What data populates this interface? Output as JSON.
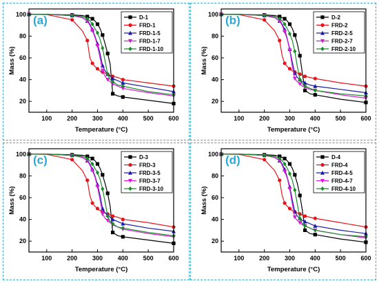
{
  "colors": {
    "frame": "#3aa6c9",
    "panel_label": "#29a8d8",
    "series": [
      "#000000",
      "#e5141b",
      "#1a1aa6",
      "#d81bd8",
      "#1b8a2a"
    ]
  },
  "chart_data": [
    {
      "type": "line",
      "panel_label": "(a)",
      "xlabel": "Temperature (°C)",
      "ylabel": "Mass (%)",
      "xlim": [
        30,
        600
      ],
      "ylim": [
        10,
        105
      ],
      "xticks": [
        "100",
        "200",
        "300",
        "400",
        "500",
        "600"
      ],
      "yticks": [
        "20",
        "40",
        "60",
        "80",
        "100"
      ],
      "legend_position": "top-right",
      "grid": false,
      "x": [
        30,
        100,
        200,
        240,
        260,
        270,
        280,
        290,
        300,
        310,
        320,
        330,
        340,
        350,
        360,
        380,
        400,
        500,
        600
      ],
      "series": [
        {
          "name": "D-1",
          "values": [
            100,
            100,
            99.5,
            99,
            98,
            97,
            96,
            94,
            91,
            87,
            81,
            73,
            64,
            54,
            27,
            25,
            24,
            21,
            18
          ]
        },
        {
          "name": "FRD-1",
          "values": [
            100,
            99.8,
            95,
            85,
            76,
            60,
            55,
            52,
            50,
            48,
            47,
            46,
            45,
            44,
            43,
            42,
            40,
            37,
            34
          ]
        },
        {
          "name": "FRD-1-5",
          "values": [
            100,
            100,
            99,
            97,
            94,
            91,
            86,
            80,
            73,
            64,
            53,
            48,
            45,
            43,
            41,
            39,
            37,
            33,
            29
          ]
        },
        {
          "name": "FRD-1-7",
          "values": [
            100,
            100,
            99,
            97,
            94,
            90,
            85,
            79,
            71,
            60,
            48,
            43,
            40,
            38,
            36,
            34,
            32,
            28,
            25
          ]
        },
        {
          "name": "FRD-1-10",
          "values": [
            100,
            100,
            99,
            98,
            96,
            94,
            91,
            87,
            83,
            77,
            69,
            57,
            45,
            40,
            38,
            35,
            34,
            29,
            26
          ]
        }
      ]
    },
    {
      "type": "line",
      "panel_label": "(b)",
      "xlabel": "Temperature (°C)",
      "ylabel": "Mass (%)",
      "xlim": [
        30,
        600
      ],
      "ylim": [
        10,
        105
      ],
      "xticks": [
        "100",
        "200",
        "300",
        "400",
        "500",
        "600"
      ],
      "yticks": [
        "20",
        "40",
        "60",
        "80",
        "100"
      ],
      "legend_position": "top-right",
      "grid": false,
      "x": [
        30,
        100,
        200,
        240,
        260,
        270,
        280,
        290,
        300,
        310,
        320,
        330,
        340,
        350,
        360,
        380,
        400,
        500,
        600
      ],
      "series": [
        {
          "name": "D-2",
          "values": [
            100,
            100,
            99.5,
            99,
            98,
            97,
            96,
            94,
            91,
            87,
            81,
            73,
            62,
            45,
            30,
            27,
            26,
            22,
            19
          ]
        },
        {
          "name": "FRD-2",
          "values": [
            100,
            99.8,
            95,
            85,
            76,
            62,
            55,
            52,
            50,
            48,
            47,
            46,
            45,
            44,
            43,
            42,
            41,
            37,
            34
          ]
        },
        {
          "name": "FRD-2-5",
          "values": [
            100,
            100,
            99,
            97,
            94,
            91,
            86,
            78,
            68,
            56,
            46,
            42,
            40,
            38,
            37,
            35,
            34,
            31,
            28
          ]
        },
        {
          "name": "FRD-2-7",
          "values": [
            100,
            100,
            99,
            97,
            94,
            90,
            84,
            77,
            67,
            52,
            41,
            38,
            36,
            34,
            33,
            31,
            30,
            26,
            23
          ]
        },
        {
          "name": "FRD-2-10",
          "values": [
            100,
            100,
            99,
            98,
            96,
            94,
            91,
            87,
            82,
            76,
            66,
            52,
            40,
            36,
            34,
            32,
            30,
            27,
            25
          ]
        }
      ]
    },
    {
      "type": "line",
      "panel_label": "(c)",
      "xlabel": "Temperature (°C)",
      "ylabel": "Mass (%)",
      "xlim": [
        30,
        600
      ],
      "ylim": [
        10,
        105
      ],
      "xticks": [
        "100",
        "200",
        "300",
        "400",
        "500",
        "600"
      ],
      "yticks": [
        "20",
        "40",
        "60",
        "80",
        "100"
      ],
      "legend_position": "top-right",
      "grid": false,
      "x": [
        30,
        100,
        200,
        240,
        260,
        270,
        280,
        290,
        300,
        310,
        320,
        330,
        340,
        350,
        360,
        380,
        400,
        500,
        600
      ],
      "series": [
        {
          "name": "D-3",
          "values": [
            100,
            100,
            99.5,
            99,
            98,
            97,
            96,
            94,
            91,
            87,
            81,
            73,
            64,
            52,
            28,
            25,
            24,
            21,
            18
          ]
        },
        {
          "name": "FRD-3",
          "values": [
            100,
            99.8,
            95,
            85,
            76,
            62,
            55,
            52,
            50,
            48,
            47,
            46,
            45,
            44,
            43,
            42,
            40,
            37,
            33
          ]
        },
        {
          "name": "FRD-3-5",
          "values": [
            100,
            100,
            99,
            97,
            94,
            91,
            86,
            80,
            72,
            62,
            50,
            46,
            44,
            42,
            40,
            38,
            36,
            32,
            29
          ]
        },
        {
          "name": "FRD-3-7",
          "values": [
            100,
            100,
            99,
            97,
            94,
            90,
            85,
            79,
            70,
            58,
            45,
            41,
            39,
            37,
            35,
            33,
            31,
            27,
            24
          ]
        },
        {
          "name": "FRD-3-10",
          "values": [
            100,
            100,
            99,
            98,
            96,
            94,
            91,
            87,
            83,
            77,
            68,
            56,
            43,
            38,
            36,
            33,
            32,
            28,
            25
          ]
        }
      ]
    },
    {
      "type": "line",
      "panel_label": "(d)",
      "xlabel": "Temperature (°C)",
      "ylabel": "Mass (%)",
      "xlim": [
        30,
        600
      ],
      "ylim": [
        10,
        105
      ],
      "xticks": [
        "100",
        "200",
        "300",
        "400",
        "500",
        "600"
      ],
      "yticks": [
        "20",
        "40",
        "60",
        "80",
        "100"
      ],
      "legend_position": "top-right",
      "grid": false,
      "x": [
        30,
        100,
        200,
        240,
        260,
        270,
        280,
        290,
        300,
        310,
        320,
        330,
        340,
        350,
        360,
        380,
        400,
        500,
        600
      ],
      "series": [
        {
          "name": "D-4",
          "values": [
            100,
            100,
            99.5,
            99,
            98,
            97,
            96,
            94,
            91,
            87,
            81,
            73,
            62,
            48,
            30,
            27,
            26,
            22,
            19
          ]
        },
        {
          "name": "FRD-4",
          "values": [
            100,
            99.8,
            95,
            85,
            76,
            62,
            55,
            52,
            50,
            48,
            47,
            46,
            45,
            44,
            43,
            42,
            41,
            37,
            33
          ]
        },
        {
          "name": "FRD-4-5",
          "values": [
            100,
            100,
            99,
            97,
            94,
            91,
            86,
            79,
            70,
            58,
            47,
            43,
            41,
            39,
            38,
            36,
            34,
            30,
            27
          ]
        },
        {
          "name": "FRD-4-7",
          "values": [
            100,
            100,
            99,
            97,
            94,
            90,
            84,
            78,
            68,
            54,
            42,
            39,
            37,
            35,
            34,
            32,
            30,
            26,
            23
          ]
        },
        {
          "name": "FRD-4-10",
          "values": [
            100,
            100,
            99,
            98,
            96,
            94,
            91,
            87,
            82,
            76,
            67,
            54,
            41,
            36,
            34,
            32,
            30,
            26,
            24
          ]
        }
      ]
    }
  ]
}
